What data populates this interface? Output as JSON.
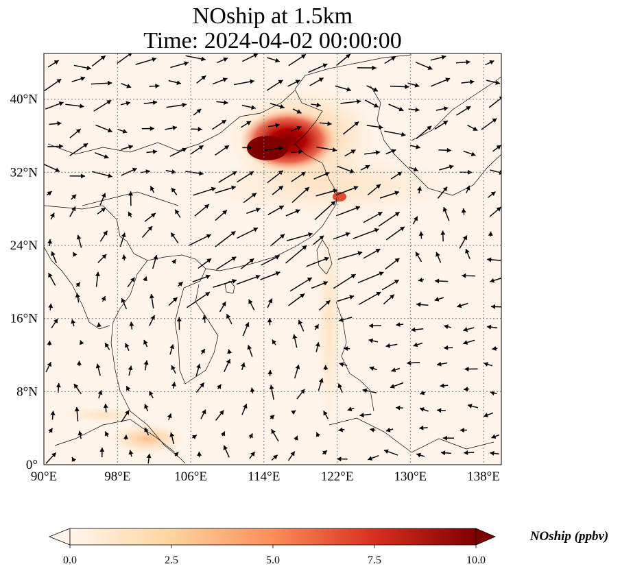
{
  "title_line1": "NOship at 1.5km",
  "title_line2": "Time: 2024-04-02 00:00:00",
  "map": {
    "lon_range": [
      90,
      140
    ],
    "lat_range": [
      0,
      45
    ],
    "x_ticks": [
      "90°E",
      "98°E",
      "106°E",
      "114°E",
      "122°E",
      "130°E",
      "138°E"
    ],
    "y_ticks": [
      "0°",
      "8°N",
      "16°N",
      "24°N",
      "32°N",
      "40°N"
    ],
    "gridlines": "dotted",
    "wind_vectors": "shown"
  },
  "colorbar": {
    "label": "NOship (ppbv)",
    "ticks": [
      "0.0",
      "2.5",
      "5.0",
      "7.5",
      "10.0"
    ],
    "range": [
      0,
      10
    ],
    "extend": "both",
    "colors": [
      "#fff5eb",
      "#fdd49e",
      "#fc8d59",
      "#d7301f",
      "#7f0000"
    ]
  }
}
